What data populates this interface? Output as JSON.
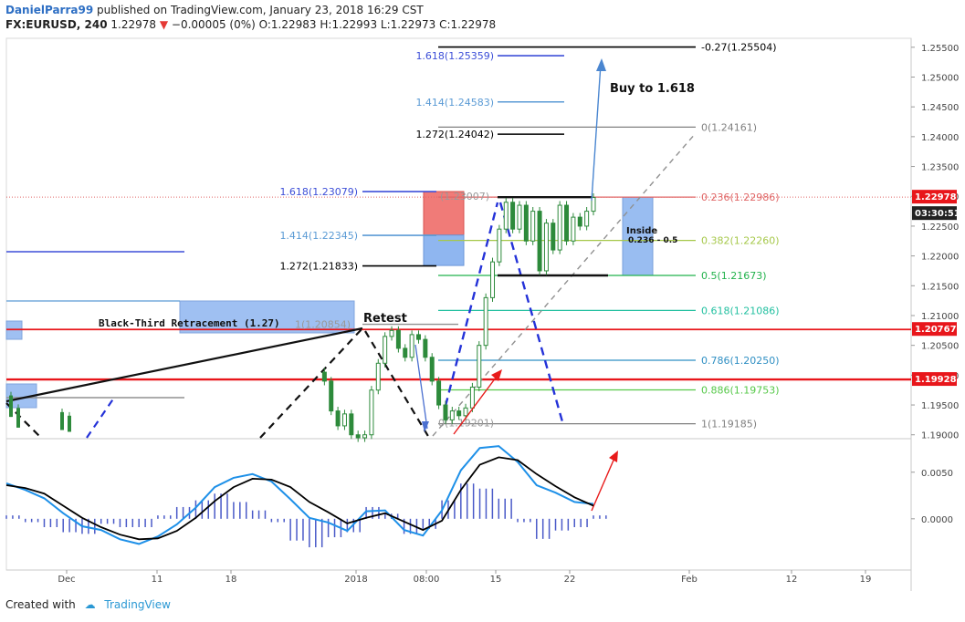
{
  "header": {
    "author": "DanielParra99",
    "published_text": "published on TradingView.com, January 23, 2018 16:29 CST",
    "symbol": "FX:EURUSD, 240",
    "last": "1.22978",
    "change": "−0.00005 (0%)",
    "open_label": "O:",
    "open": "1.22983",
    "high_label": "H:",
    "high": "1.22993",
    "low_label": "L:",
    "low": "1.22973",
    "close_label": "C:",
    "close": "1.22978"
  },
  "footer": {
    "created_with": "Created with",
    "brand": "TradingView"
  },
  "colors": {
    "resistance": "#e8161b",
    "fib_main": "#808080",
    "fib_0236": "#e06666",
    "fib_0382": "#a6c84a",
    "fib_05": "#22b24c",
    "fib_0618": "#22c0a0",
    "fib_0786": "#2f8fc3",
    "fib_0886": "#55c848",
    "ext_blue": "#3d4fd8",
    "ext_light": "#5b9bd5",
    "macd_line": "#1e90e8",
    "signal_line": "#000000",
    "histogram": "#4a5ac8",
    "candle": "#2d8a3b",
    "box_blue": "#8fb6f0",
    "box_red": "#f07b78",
    "price_badge_dark": "#222222"
  },
  "chart_data": [
    {
      "type": "candlestick",
      "title": "",
      "y_axis": {
        "range": [
          1.1895,
          1.2565
        ],
        "ticks": [
          "1.25500",
          "1.25000",
          "1.24500",
          "1.24000",
          "1.23500",
          "1.23000",
          "1.22500",
          "1.22000",
          "1.21500",
          "1.21000",
          "1.20500",
          "1.20000",
          "1.19500",
          "1.19000"
        ]
      },
      "x_axis": {
        "ticks": [
          "Dec",
          "11",
          "18",
          "2018",
          "08:00",
          "15",
          "22",
          "Feb",
          "12",
          "19"
        ]
      },
      "price_badges": [
        {
          "label": "1.22978",
          "kind": "last"
        },
        {
          "label": "03:30:51",
          "kind": "timer"
        },
        {
          "label": "1.20767",
          "kind": "resistance"
        },
        {
          "label": "1.19928",
          "kind": "resistance"
        }
      ],
      "horizontal_levels": [
        {
          "price": 1.20767,
          "style": "resistance"
        },
        {
          "price": 1.19928,
          "style": "resistance"
        }
      ],
      "fib_retracement": [
        {
          "label": "-0.27(1.25504)",
          "price": 1.25504,
          "color_key": "signal_line"
        },
        {
          "label": "0(1.24161)",
          "price": 1.24161,
          "color_key": "fib_main"
        },
        {
          "label": "0.236(1.22986)",
          "price": 1.22986,
          "color_key": "fib_0236"
        },
        {
          "label": "0.382(1.22260)",
          "price": 1.2226,
          "color_key": "fib_0382"
        },
        {
          "label": "0.5(1.21673)",
          "price": 1.21673,
          "color_key": "fib_05"
        },
        {
          "label": "0.618(1.21086)",
          "price": 1.21086,
          "color_key": "fib_0618"
        },
        {
          "label": "0.786(1.20250)",
          "price": 1.2025,
          "color_key": "fib_0786"
        },
        {
          "label": "0.886(1.19753)",
          "price": 1.19753,
          "color_key": "fib_0886"
        },
        {
          "label": "1(1.19185)",
          "price": 1.19185,
          "color_key": "fib_main"
        }
      ],
      "fib_extension_right": [
        {
          "label": "1.618(1.25359)",
          "price": 1.25359,
          "color_key": "ext_blue"
        },
        {
          "label": "1.414(1.24583)",
          "price": 1.24583,
          "color_key": "ext_light"
        },
        {
          "label": "1.272(1.24042)",
          "price": 1.24042,
          "color_key": "signal_line"
        }
      ],
      "fib_extension_left": [
        {
          "label": "1.618(1.23079)",
          "price": 1.23079,
          "color_key": "ext_blue"
        },
        {
          "label": "1.414(1.22345)",
          "price": 1.22345,
          "color_key": "ext_light"
        },
        {
          "label": "1.272(1.21833)",
          "price": 1.21833,
          "color_key": "signal_line"
        }
      ],
      "partial_labels": [
        {
          "label": "1(1.20854)",
          "price": 1.20854
        },
        {
          "label": "0(1.19201)",
          "price": 1.19201
        },
        {
          "label": "(1.23007)",
          "price": 1.23007
        }
      ],
      "annotations": [
        {
          "text": "Buy to 1.618"
        },
        {
          "text": "Retest"
        },
        {
          "text": "Black-Third Retracement (1.27)"
        },
        {
          "text": "Inside"
        },
        {
          "text": "0.236 - 0.5"
        }
      ],
      "ohlc_path": [
        1.2005,
        1.199,
        1.194,
        1.1915,
        1.1935,
        1.19,
        1.1895,
        1.19,
        1.1975,
        1.202,
        1.2065,
        1.2075,
        1.2045,
        1.203,
        1.2068,
        1.206,
        1.203,
        1.199,
        1.195,
        1.1925,
        1.194,
        1.1932,
        1.1945,
        1.198,
        1.205,
        1.213,
        1.219,
        1.2245,
        1.229,
        1.2245,
        1.2285,
        1.2225,
        1.2275,
        1.2175,
        1.2255,
        1.221,
        1.2285,
        1.2225,
        1.2265,
        1.225,
        1.2275,
        1.2298
      ]
    },
    {
      "type": "macd",
      "title": "",
      "y_axis": {
        "ticks": [
          "0.0050",
          "0.0000"
        ],
        "range": [
          -0.0055,
          0.0085
        ]
      },
      "macd": [
        0.0038,
        0.0031,
        0.0022,
        0.0006,
        -0.0008,
        -0.0012,
        -0.0022,
        -0.0027,
        -0.0019,
        -0.0006,
        0.0012,
        0.0034,
        0.0044,
        0.0048,
        0.004,
        0.0021,
        0.0001,
        -0.0004,
        -0.0013,
        0.0008,
        0.0009,
        -0.0012,
        -0.0018,
        0.0009,
        0.0052,
        0.0076,
        0.0078,
        0.0061,
        0.0036,
        0.0028,
        0.0018,
        0.0016
      ],
      "signal": [
        0.0036,
        0.0033,
        0.0027,
        0.0014,
        0.0001,
        -0.0009,
        -0.0017,
        -0.0022,
        -0.0021,
        -0.0013,
        0.0001,
        0.0019,
        0.0034,
        0.0043,
        0.0042,
        0.0034,
        0.0018,
        0.0007,
        -0.0005,
        0.0001,
        0.0006,
        -0.0003,
        -0.0012,
        -0.0002,
        0.0031,
        0.0058,
        0.0066,
        0.0063,
        0.0048,
        0.0035,
        0.0023,
        0.0014
      ]
    }
  ]
}
